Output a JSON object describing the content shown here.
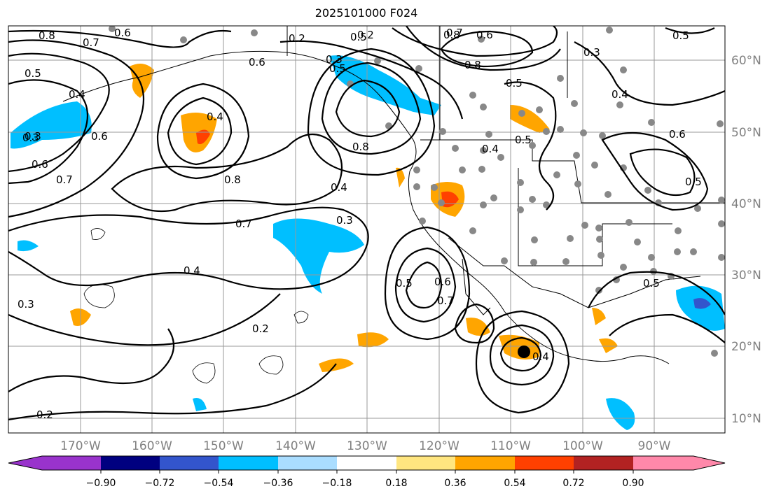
{
  "title": "2025101000 F024",
  "map": {
    "latitude_labels": [
      "60°N",
      "50°N",
      "40°N",
      "30°N",
      "20°N",
      "10°N"
    ],
    "longitude_labels": [
      "170°W",
      "160°W",
      "150°W",
      "140°W",
      "130°W",
      "120°W",
      "110°W",
      "100°W",
      "90°W"
    ],
    "contour_labels": [
      "0.8",
      "0.7",
      "0.6",
      "0.5",
      "0.4",
      "0.3",
      "0.2",
      "0.6",
      "0.8",
      "0.4",
      "0.7",
      "0.5",
      "0.8",
      "0.4",
      "0.3",
      "0.7",
      "0.4",
      "0.2",
      "0.5",
      "0.6",
      "0.5",
      "0.8",
      "0.4",
      "0.5",
      "0.6",
      "0.5",
      "0.3",
      "0.3",
      "0.5",
      "0.6",
      "0.3",
      "0.2",
      "0.5",
      "0.4",
      "0.7",
      "0.8",
      "0.5",
      "0.4",
      "0.3",
      "0.6",
      "0.2",
      "0.7",
      "0.6"
    ]
  },
  "colorbar": {
    "tick_labels": [
      "−0.90",
      "−0.72",
      "−0.54",
      "−0.36",
      "−0.18",
      "0.18",
      "0.36",
      "0.54",
      "0.72",
      "0.90"
    ],
    "colors": [
      "#9933cc",
      "#000080",
      "#3355cc",
      "#00bfff",
      "#aaddff",
      "#ffffff",
      "#ffe680",
      "#ffa500",
      "#ff4000",
      "#b22222",
      "#ff88aa"
    ]
  }
}
